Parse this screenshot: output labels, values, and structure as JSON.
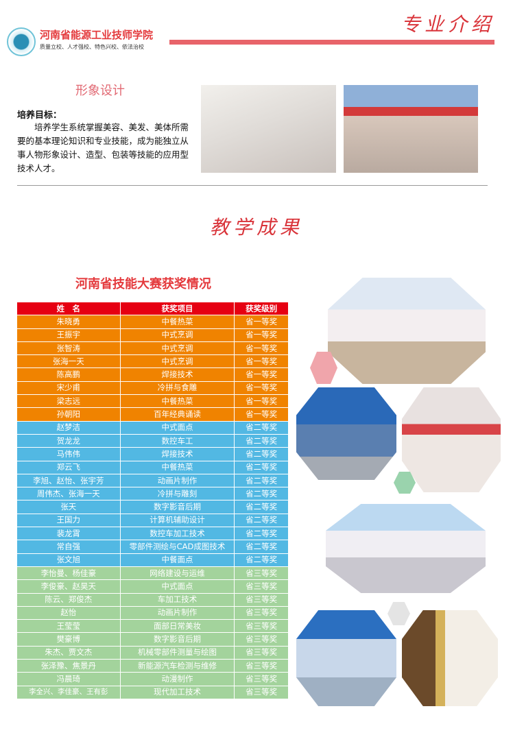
{
  "header": {
    "school_name": "河南省能源工业技师学院",
    "motto": "质量立校、人才强校、特色兴校、依法治校",
    "section_title": "专业介绍"
  },
  "major": {
    "name": "形象设计",
    "goal_label": "培养目标：",
    "goal_text": "培养学生系统掌握美容、美发、美体所需要的基本理论知识和专业技能，成为能独立从事人物形象设计、造型、包装等技能的应用型技术人才。"
  },
  "achievements": {
    "title": "教学成果"
  },
  "awards": {
    "title": "河南省技能大赛获奖情况",
    "colors": {
      "header": "#e60012",
      "first": "#f08300",
      "second": "#52b8e3",
      "third": "#a3d39c"
    },
    "columns": [
      "姓　名",
      "获奖项目",
      "获奖级别"
    ],
    "rows": [
      [
        "朱晓勇",
        "中餐热菜",
        "省一等奖",
        "first"
      ],
      [
        "王振宇",
        "中式烹调",
        "省一等奖",
        "first"
      ],
      [
        "张智涛",
        "中式烹调",
        "省一等奖",
        "first"
      ],
      [
        "张海一天",
        "中式烹调",
        "省一等奖",
        "first"
      ],
      [
        "陈高鹏",
        "焊接技术",
        "省一等奖",
        "first"
      ],
      [
        "宋少甫",
        "冷拼与食雕",
        "省一等奖",
        "first"
      ],
      [
        "梁志远",
        "中餐热菜",
        "省一等奖",
        "first"
      ],
      [
        "孙朝阳",
        "百年经典诵读",
        "省一等奖",
        "first"
      ],
      [
        "赵梦洁",
        "中式面点",
        "省二等奖",
        "second"
      ],
      [
        "贺龙龙",
        "数控车工",
        "省二等奖",
        "second"
      ],
      [
        "马伟伟",
        "焊接技术",
        "省二等奖",
        "second"
      ],
      [
        "郑云飞",
        "中餐热菜",
        "省二等奖",
        "second"
      ],
      [
        "李旭、赵怡、张宇芳",
        "动画片制作",
        "省二等奖",
        "second"
      ],
      [
        "周伟杰、张海一天",
        "冷拼与雕刻",
        "省二等奖",
        "second"
      ],
      [
        "张天",
        "数字影音后期",
        "省二等奖",
        "second"
      ],
      [
        "王国力",
        "计算机辅助设计",
        "省二等奖",
        "second"
      ],
      [
        "裴龙霄",
        "数控车加工技术",
        "省二等奖",
        "second"
      ],
      [
        "常自强",
        "零部件测绘与CAD成图技术",
        "省二等奖",
        "second"
      ],
      [
        "张文旭",
        "中餐面点",
        "省二等奖",
        "second"
      ],
      [
        "李怡曼、杨佳豪",
        "网络建设与运维",
        "省三等奖",
        "third"
      ],
      [
        "李俊豪、赵昊天",
        "中式面点",
        "省三等奖",
        "third"
      ],
      [
        "陈云、郑俊杰",
        "车加工技术",
        "省三等奖",
        "third"
      ],
      [
        "赵怡",
        "动画片制作",
        "省三等奖",
        "third"
      ],
      [
        "王莹莹",
        "面部日常美妆",
        "省三等奖",
        "third"
      ],
      [
        "樊豪博",
        "数字影音后期",
        "省三等奖",
        "third"
      ],
      [
        "朱杰、贾文杰",
        "机械零部件测量与绘图",
        "省三等奖",
        "third"
      ],
      [
        "张泽豫、焦景丹",
        "新能源汽车检测与维修",
        "省三等奖",
        "third"
      ],
      [
        "冯晨琦",
        "动漫制作",
        "省三等奖",
        "third"
      ],
      [
        "李全兴、李佳豪、王有彭",
        "现代加工技术",
        "省三等奖",
        "third"
      ]
    ]
  }
}
